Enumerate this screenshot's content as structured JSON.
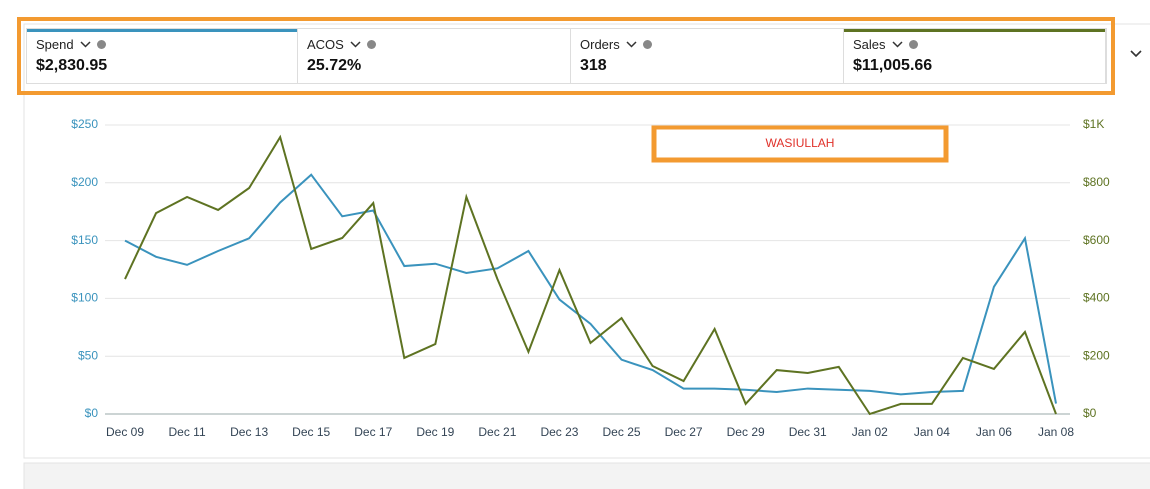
{
  "metrics": [
    {
      "label": "Spend",
      "value": "$2,830.95"
    },
    {
      "label": "ACOS",
      "value": "25.72%"
    },
    {
      "label": "Orders",
      "value": "318"
    },
    {
      "label": "Sales",
      "value": "$11,005.66"
    }
  ],
  "chart_data": {
    "type": "line",
    "annotation": "WASIULLAH",
    "categories": [
      "Dec 09",
      null,
      "Dec 11",
      null,
      "Dec 13",
      null,
      "Dec 15",
      null,
      "Dec 17",
      null,
      "Dec 19",
      null,
      "Dec 21",
      null,
      "Dec 23",
      null,
      "Dec 25",
      null,
      "Dec 27",
      null,
      "Dec 29",
      null,
      "Dec 31",
      null,
      "Jan 02",
      null,
      "Jan 04",
      null,
      "Jan 06",
      null,
      "Jan 08"
    ],
    "series": [
      {
        "color": "#3a93bd",
        "values": [
          150,
          136,
          129,
          141,
          152,
          183,
          207,
          171,
          176,
          128,
          130,
          122,
          126,
          141,
          99,
          78,
          47,
          38,
          22,
          22,
          21,
          19,
          22,
          21,
          20,
          17,
          19,
          20,
          110,
          152,
          9
        ]
      },
      {
        "color": "#5e7322",
        "axis": "y2",
        "values": [
          467,
          695,
          751,
          706,
          782,
          958,
          571,
          609,
          730,
          194,
          242,
          751,
          467,
          215,
          498,
          246,
          332,
          166,
          114,
          294,
          35,
          152,
          142,
          163,
          0,
          35,
          35,
          194,
          156,
          284,
          0
        ]
      }
    ],
    "ylim": [
      0,
      250
    ],
    "yticks": [
      {
        "value": 0,
        "label": "$0"
      },
      {
        "value": 50,
        "label": "$50"
      },
      {
        "value": 100,
        "label": "$100"
      },
      {
        "value": 150,
        "label": "$150"
      },
      {
        "value": 200,
        "label": "$200"
      },
      {
        "value": 250,
        "label": "$250"
      }
    ],
    "y2lim": [
      0,
      1000
    ],
    "y2ticks": [
      {
        "value": 0,
        "label": "$0"
      },
      {
        "value": 200,
        "label": "$200"
      },
      {
        "value": 400,
        "label": "$400"
      },
      {
        "value": 600,
        "label": "$600"
      },
      {
        "value": 800,
        "label": "$800"
      },
      {
        "value": 1000,
        "label": "$1K"
      }
    ],
    "grid": true
  }
}
